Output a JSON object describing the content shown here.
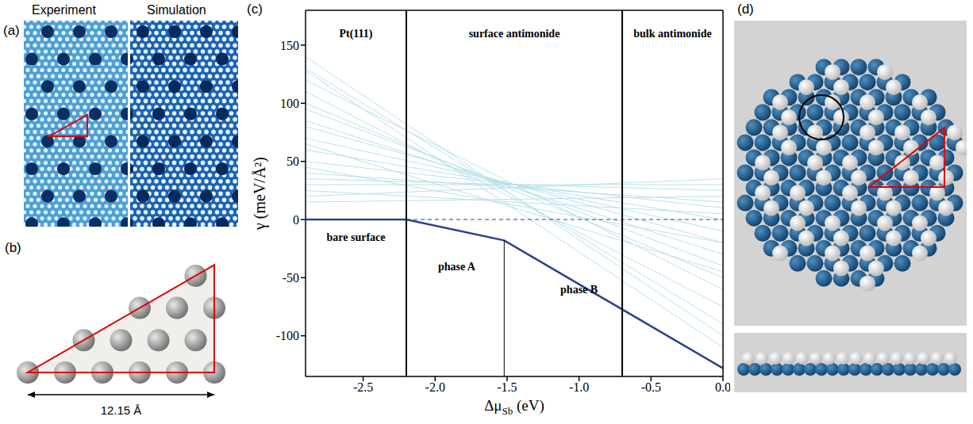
{
  "panels": {
    "a": {
      "letter": "(a)",
      "labels": [
        "Experiment",
        "Simulation"
      ]
    },
    "b": {
      "letter": "(b)",
      "length_label": "12.15 Å"
    },
    "d": {
      "letter": "(d)"
    }
  },
  "chart_data": {
    "letter": "(c)",
    "type": "line",
    "x_label": {
      "text": "Δμ",
      "subscript": "Sb",
      "unit": "(eV)"
    },
    "y_label": "γ (meV/Å²)",
    "xlim": [
      -2.9,
      0
    ],
    "ylim": [
      -135,
      180
    ],
    "xticks": [
      -2.5,
      {
        "value": -2,
        "label": "-2.0"
      },
      -1.5,
      {
        "value": -1,
        "label": "-1.0"
      },
      -0.5,
      {
        "value": 0,
        "label": "0.0"
      }
    ],
    "yticks": [
      -100,
      -50,
      0,
      50,
      100,
      150
    ],
    "candidates": {
      "color": "#b9e0ea",
      "x": [
        -2.9,
        0
      ],
      "values": [
        [
          140,
          -100
        ],
        [
          130,
          -90
        ],
        [
          128,
          -110
        ],
        [
          120,
          -60
        ],
        [
          110,
          -75
        ],
        [
          100,
          -50
        ],
        [
          95,
          -40
        ],
        [
          85,
          -30
        ],
        [
          80,
          -20
        ],
        [
          70,
          -10
        ],
        [
          65,
          -45
        ],
        [
          60,
          0
        ],
        [
          50,
          10
        ],
        [
          45,
          -20
        ],
        [
          40,
          15
        ],
        [
          35,
          25
        ],
        [
          30,
          30
        ],
        [
          25,
          5
        ],
        [
          20,
          35
        ],
        [
          15,
          20
        ]
      ]
    },
    "hull": {
      "color": "#2b3f8f",
      "x": [
        -2.9,
        -2.2,
        -1.52,
        0
      ],
      "values": [
        0,
        0,
        -18,
        -128
      ]
    },
    "boundaries": [
      -2.2,
      -0.7
    ],
    "phase_boundary": {
      "x": -1.52,
      "y": -18
    },
    "zero_line": {
      "y": 0,
      "x": [
        -2.2,
        0
      ],
      "color": "#2b3f8f",
      "line_style": "dashed"
    },
    "annotations": [
      {
        "text": "Pt(111)",
        "x": -2.55,
        "y": 160
      },
      {
        "text": "surface antimonide",
        "x": -1.45,
        "y": 160
      },
      {
        "text": "bulk antimonide",
        "x": -0.35,
        "y": 160
      },
      {
        "text": "bare surface",
        "x": -2.55,
        "y": -15
      },
      {
        "text": "phase A",
        "x": -1.85,
        "y": -40
      },
      {
        "text": "phase B",
        "x": -1.0,
        "y": -60
      }
    ]
  }
}
